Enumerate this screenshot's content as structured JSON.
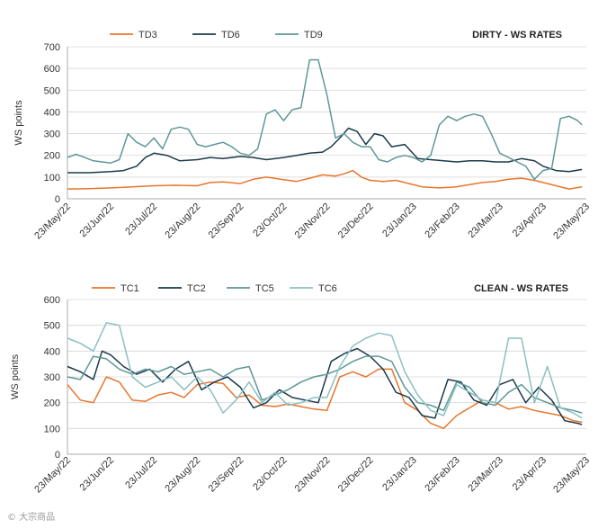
{
  "watermark": "© 大宗商品",
  "chart_data": [
    {
      "type": "line",
      "title": "DIRTY - WS RATES",
      "ylabel": "WS points",
      "ylim": [
        0,
        700
      ],
      "yticks": [
        0,
        100,
        200,
        300,
        400,
        500,
        600,
        700
      ],
      "categories": [
        "23/May/22",
        "23/Jun/22",
        "23/Jul/22",
        "23/Aug/22",
        "23/Sep/22",
        "23/Oct/22",
        "23/Nov/22",
        "23/Dec/22",
        "23/Jan/23",
        "23/Feb/23",
        "23/Mar/23",
        "23/Apr/23",
        "23/May/23"
      ],
      "x_range": [
        0,
        12
      ],
      "series": [
        {
          "name": "TD3",
          "color": "#e8752e",
          "x": [
            0,
            0.5,
            1,
            1.5,
            2,
            2.5,
            3,
            3.3,
            3.6,
            4,
            4.3,
            4.6,
            5,
            5.3,
            5.6,
            5.9,
            6.2,
            6.4,
            6.6,
            6.8,
            7,
            7.3,
            7.6,
            7.9,
            8.2,
            8.6,
            9,
            9.3,
            9.6,
            9.9,
            10.2,
            10.5,
            10.8,
            11,
            11.3,
            11.6,
            11.9
          ],
          "values": [
            45,
            47,
            50,
            55,
            60,
            62,
            60,
            75,
            78,
            70,
            90,
            100,
            88,
            80,
            95,
            110,
            105,
            115,
            130,
            100,
            85,
            80,
            85,
            70,
            55,
            50,
            55,
            65,
            75,
            80,
            90,
            95,
            85,
            75,
            60,
            45,
            55
          ]
        },
        {
          "name": "TD6",
          "color": "#1b3a4b",
          "x": [
            0,
            0.5,
            1,
            1.3,
            1.6,
            1.8,
            2,
            2.3,
            2.6,
            3,
            3.3,
            3.6,
            4,
            4.3,
            4.6,
            5,
            5.3,
            5.6,
            5.9,
            6.1,
            6.3,
            6.5,
            6.7,
            6.9,
            7.1,
            7.3,
            7.5,
            7.8,
            8.1,
            8.4,
            8.7,
            9,
            9.3,
            9.6,
            9.9,
            10.2,
            10.5,
            10.8,
            11,
            11.3,
            11.6,
            11.9
          ],
          "values": [
            120,
            120,
            125,
            130,
            150,
            190,
            210,
            200,
            175,
            180,
            190,
            185,
            195,
            190,
            180,
            190,
            200,
            210,
            215,
            240,
            280,
            325,
            310,
            250,
            300,
            290,
            240,
            250,
            185,
            180,
            175,
            170,
            175,
            175,
            170,
            170,
            185,
            175,
            150,
            130,
            125,
            135
          ]
        },
        {
          "name": "TD9",
          "color": "#5e9797",
          "x": [
            0,
            0.2,
            0.4,
            0.6,
            0.8,
            1,
            1.2,
            1.4,
            1.6,
            1.8,
            2,
            2.2,
            2.4,
            2.6,
            2.8,
            3,
            3.2,
            3.4,
            3.6,
            3.8,
            4,
            4.2,
            4.4,
            4.6,
            4.8,
            5,
            5.2,
            5.4,
            5.6,
            5.8,
            6,
            6.2,
            6.4,
            6.6,
            6.8,
            7,
            7.2,
            7.4,
            7.6,
            7.8,
            8,
            8.2,
            8.4,
            8.6,
            8.8,
            9,
            9.2,
            9.4,
            9.6,
            9.8,
            10,
            10.2,
            10.4,
            10.6,
            10.8,
            11,
            11.2,
            11.4,
            11.6,
            11.8,
            11.9
          ],
          "values": [
            190,
            205,
            190,
            175,
            170,
            165,
            180,
            300,
            260,
            240,
            280,
            230,
            320,
            330,
            320,
            250,
            240,
            250,
            260,
            240,
            210,
            200,
            230,
            390,
            410,
            360,
            410,
            420,
            640,
            640,
            480,
            280,
            300,
            260,
            240,
            240,
            180,
            170,
            190,
            200,
            190,
            170,
            200,
            340,
            380,
            360,
            380,
            390,
            380,
            300,
            210,
            190,
            170,
            150,
            90,
            130,
            140,
            370,
            380,
            360,
            340
          ]
        }
      ]
    },
    {
      "type": "line",
      "title": "CLEAN - WS RATES",
      "ylabel": "WS points",
      "ylim": [
        0,
        600
      ],
      "yticks": [
        0,
        100,
        200,
        300,
        400,
        500,
        600
      ],
      "categories": [
        "23/May/22",
        "23/Jun/22",
        "23/Jul/22",
        "23/Aug/22",
        "23/Sep/22",
        "23/Oct/22",
        "23/Nov/22",
        "23/Dec/22",
        "23/Jan/23",
        "23/Feb/23",
        "23/Mar/23",
        "23/Apr/23",
        "23/May/23"
      ],
      "x_range": [
        0,
        12
      ],
      "series": [
        {
          "name": "TC1",
          "color": "#e8752e",
          "x": [
            0,
            0.3,
            0.6,
            0.9,
            1.2,
            1.5,
            1.8,
            2.1,
            2.4,
            2.7,
            3,
            3.3,
            3.6,
            3.9,
            4.2,
            4.5,
            4.8,
            5.1,
            5.4,
            5.7,
            6,
            6.3,
            6.6,
            6.9,
            7.2,
            7.5,
            7.8,
            8.1,
            8.4,
            8.7,
            9,
            9.3,
            9.6,
            9.9,
            10.2,
            10.5,
            10.8,
            11.1,
            11.4,
            11.7,
            11.9
          ],
          "values": [
            270,
            210,
            200,
            300,
            280,
            210,
            205,
            230,
            240,
            220,
            270,
            280,
            275,
            220,
            230,
            190,
            185,
            195,
            185,
            175,
            170,
            300,
            320,
            300,
            330,
            330,
            200,
            170,
            120,
            100,
            150,
            180,
            210,
            200,
            175,
            185,
            170,
            160,
            150,
            130,
            125
          ]
        },
        {
          "name": "TC2",
          "color": "#1b3a4b",
          "x": [
            0,
            0.3,
            0.6,
            0.8,
            1,
            1.3,
            1.6,
            1.9,
            2.2,
            2.5,
            2.8,
            3.1,
            3.4,
            3.7,
            4,
            4.3,
            4.6,
            4.9,
            5.2,
            5.5,
            5.8,
            6.1,
            6.4,
            6.7,
            7,
            7.3,
            7.6,
            7.9,
            8.2,
            8.5,
            8.8,
            9.1,
            9.4,
            9.7,
            10,
            10.3,
            10.6,
            10.9,
            11.2,
            11.5,
            11.8,
            11.9
          ],
          "values": [
            340,
            320,
            290,
            400,
            385,
            340,
            310,
            330,
            280,
            330,
            360,
            250,
            280,
            300,
            260,
            180,
            200,
            250,
            220,
            210,
            200,
            360,
            390,
            410,
            380,
            330,
            240,
            220,
            150,
            140,
            290,
            280,
            210,
            190,
            270,
            290,
            200,
            260,
            210,
            130,
            120,
            115
          ]
        },
        {
          "name": "TC5",
          "color": "#5e9797",
          "x": [
            0,
            0.3,
            0.6,
            0.9,
            1.2,
            1.5,
            1.8,
            2.1,
            2.4,
            2.7,
            3,
            3.3,
            3.6,
            3.9,
            4.2,
            4.5,
            4.8,
            5.1,
            5.4,
            5.7,
            6,
            6.3,
            6.6,
            6.9,
            7.2,
            7.5,
            7.8,
            8.1,
            8.4,
            8.7,
            9,
            9.3,
            9.6,
            9.9,
            10.2,
            10.5,
            10.8,
            11.1,
            11.4,
            11.7,
            11.9
          ],
          "values": [
            300,
            290,
            380,
            370,
            330,
            310,
            330,
            320,
            340,
            310,
            320,
            330,
            300,
            330,
            340,
            210,
            230,
            250,
            280,
            300,
            310,
            330,
            360,
            380,
            380,
            360,
            260,
            200,
            190,
            170,
            280,
            260,
            200,
            190,
            240,
            270,
            220,
            200,
            180,
            170,
            160
          ]
        },
        {
          "name": "TC6",
          "color": "#8cc0c0",
          "x": [
            0,
            0.3,
            0.6,
            0.9,
            1.2,
            1.5,
            1.8,
            2.1,
            2.4,
            2.7,
            3,
            3.3,
            3.6,
            3.9,
            4.2,
            4.5,
            4.8,
            5.1,
            5.4,
            5.7,
            6,
            6.3,
            6.6,
            6.9,
            7.2,
            7.5,
            7.8,
            8.1,
            8.4,
            8.7,
            9,
            9.3,
            9.6,
            9.9,
            10.2,
            10.5,
            10.8,
            11.1,
            11.4,
            11.7,
            11.9
          ],
          "values": [
            450,
            430,
            400,
            510,
            500,
            300,
            260,
            280,
            300,
            250,
            300,
            250,
            160,
            210,
            280,
            200,
            240,
            190,
            200,
            220,
            220,
            340,
            420,
            450,
            470,
            460,
            320,
            230,
            170,
            150,
            270,
            240,
            210,
            200,
            450,
            450,
            200,
            340,
            180,
            160,
            140
          ]
        }
      ]
    }
  ]
}
